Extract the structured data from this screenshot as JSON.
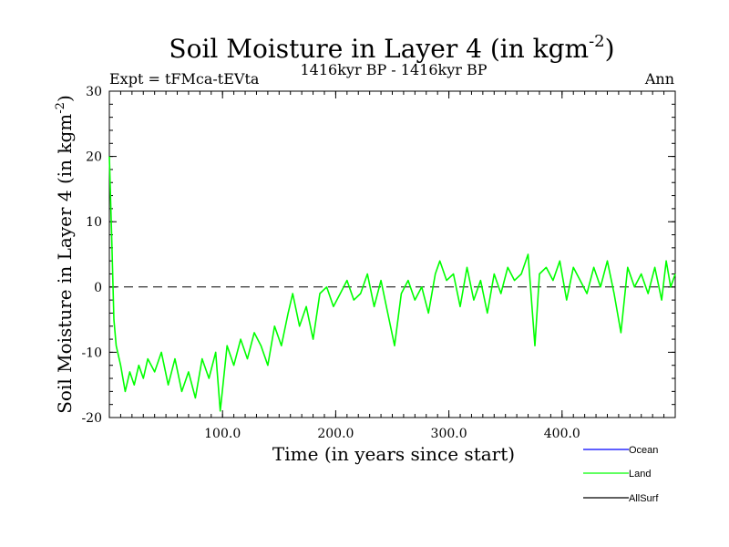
{
  "chart_data": {
    "type": "line",
    "title": "Soil Moisture in Layer 4 (in kgm",
    "title_sup": "-2",
    "title_close": ")",
    "subtitle_left": "Expt = tFMca-tEVta",
    "subtitle_center": "1416kyr BP - 1416kyr BP",
    "subtitle_right": "Ann",
    "xlabel": "Time (in years since start)",
    "ylabel": "Soil Moisture in Layer 4 (in kgm",
    "ylabel_sup": "-2",
    "ylabel_close": ")",
    "xlim": [
      0,
      500
    ],
    "ylim": [
      -20,
      30
    ],
    "x_ticks": [
      100,
      200,
      300,
      400
    ],
    "x_tick_labels": [
      "100.0",
      "200.0",
      "300.0",
      "400.0"
    ],
    "y_ticks": [
      -20,
      -10,
      0,
      10,
      20,
      30
    ],
    "y_tick_labels": [
      "-20",
      "-10",
      "0",
      "10",
      "20",
      "30"
    ],
    "reference_line": 0,
    "legend_position": "bottom-right",
    "series": [
      {
        "name": "Ocean",
        "color": "#0000ff",
        "values": []
      },
      {
        "name": "Land",
        "color": "#00ff00",
        "x": [
          0,
          2,
          4,
          6,
          10,
          14,
          18,
          22,
          26,
          30,
          34,
          40,
          46,
          52,
          58,
          64,
          70,
          76,
          82,
          88,
          94,
          98,
          104,
          110,
          116,
          122,
          128,
          134,
          140,
          146,
          152,
          158,
          162,
          168,
          174,
          180,
          186,
          192,
          198,
          204,
          210,
          216,
          222,
          228,
          234,
          240,
          246,
          252,
          258,
          264,
          270,
          276,
          282,
          288,
          292,
          298,
          304,
          310,
          316,
          322,
          328,
          334,
          340,
          346,
          352,
          358,
          364,
          370,
          376,
          380,
          386,
          392,
          398,
          404,
          410,
          416,
          422,
          428,
          434,
          440,
          446,
          452,
          458,
          464,
          470,
          476,
          482,
          488,
          492,
          496,
          500
        ],
        "values": [
          20,
          8,
          -5,
          -9,
          -12,
          -16,
          -13,
          -15,
          -12,
          -14,
          -11,
          -13,
          -10,
          -15,
          -11,
          -16,
          -13,
          -17,
          -11,
          -14,
          -10,
          -19,
          -9,
          -12,
          -8,
          -11,
          -7,
          -9,
          -12,
          -6,
          -9,
          -4,
          -1,
          -6,
          -3,
          -8,
          -1,
          0,
          -3,
          -1,
          1,
          -2,
          -1,
          2,
          -3,
          1,
          -4,
          -9,
          -1,
          1,
          -2,
          0,
          -4,
          2,
          4,
          1,
          2,
          -3,
          3,
          -2,
          1,
          -4,
          2,
          -1,
          3,
          1,
          2,
          5,
          -9,
          2,
          3,
          1,
          4,
          -2,
          3,
          1,
          -1,
          3,
          0,
          4,
          -1,
          -7,
          3,
          0,
          2,
          -1,
          3,
          -2,
          4,
          0,
          2
        ]
      },
      {
        "name": "AllSurf",
        "color": "#000000",
        "values": []
      }
    ]
  }
}
